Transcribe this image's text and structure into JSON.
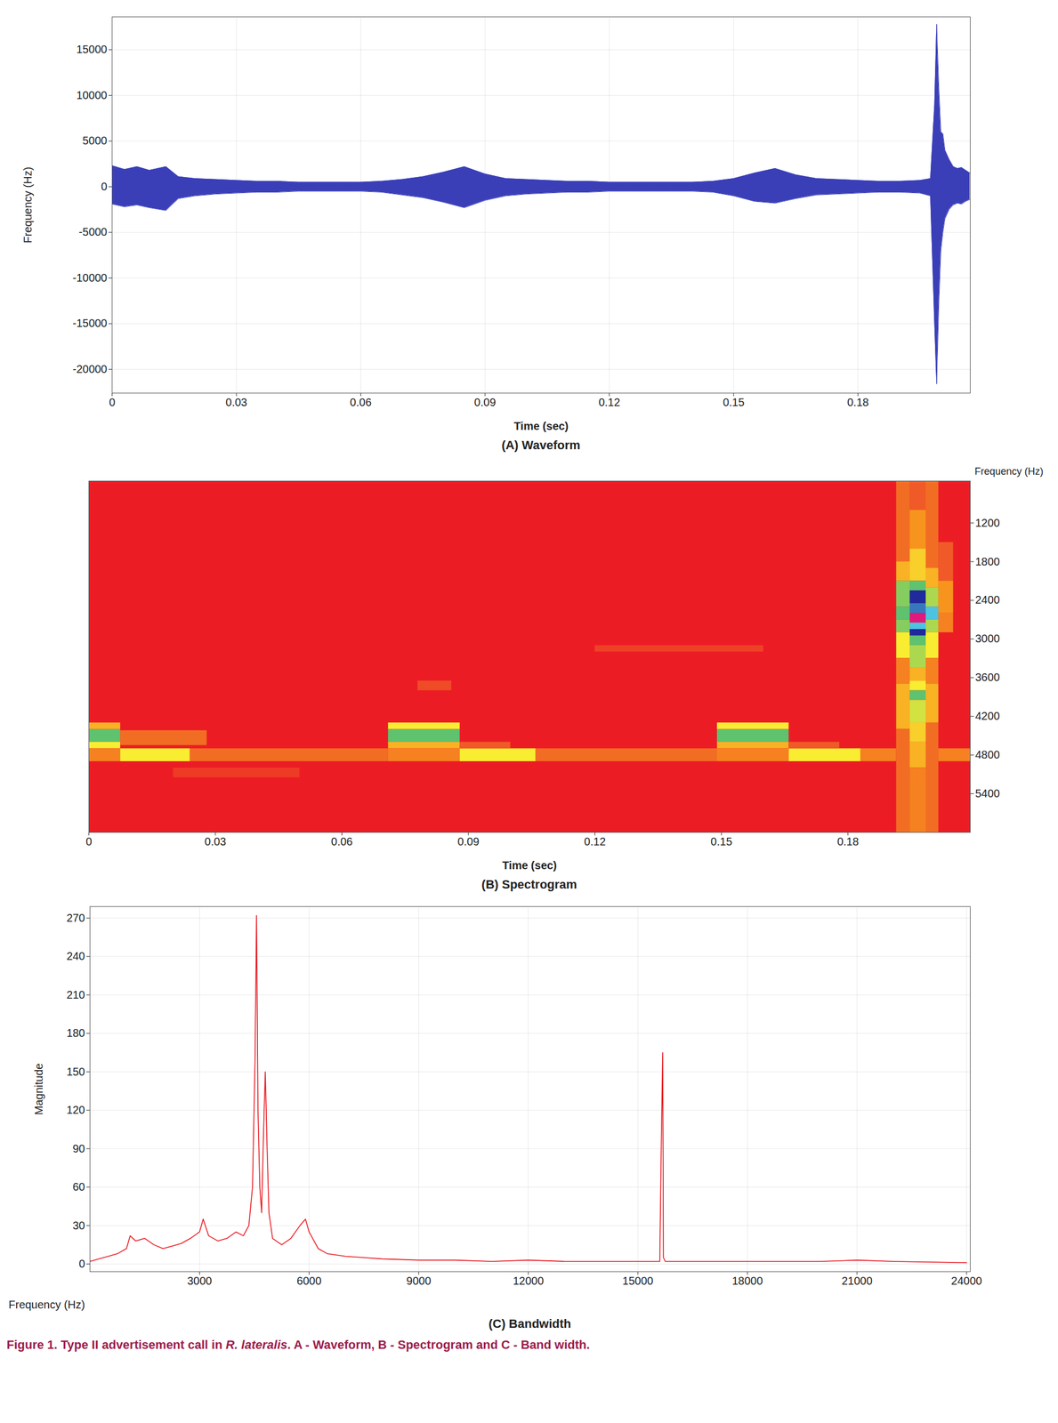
{
  "chart_data": [
    {
      "type": "area",
      "title": "(A) Waveform",
      "x_label": "Time (sec)",
      "y_label": "Frequency (Hz)",
      "color": "#3a3fb8",
      "grid": true,
      "x": [
        0,
        0.003,
        0.006,
        0.009,
        0.013,
        0.016,
        0.02,
        0.025,
        0.03,
        0.035,
        0.04,
        0.045,
        0.05,
        0.055,
        0.06,
        0.065,
        0.07,
        0.075,
        0.08,
        0.085,
        0.09,
        0.095,
        0.1,
        0.105,
        0.11,
        0.115,
        0.12,
        0.125,
        0.13,
        0.135,
        0.14,
        0.145,
        0.15,
        0.155,
        0.16,
        0.165,
        0.17,
        0.175,
        0.18,
        0.185,
        0.19,
        0.195,
        0.1975,
        0.1985,
        0.199,
        0.1995,
        0.2,
        0.2005,
        0.201,
        0.202,
        0.203,
        0.204,
        0.205,
        0.206,
        0.207
      ],
      "y_max": [
        2300,
        1900,
        2200,
        1800,
        2200,
        1100,
        900,
        800,
        700,
        600,
        600,
        500,
        500,
        500,
        500,
        600,
        800,
        1100,
        1600,
        2200,
        1400,
        900,
        800,
        700,
        600,
        600,
        500,
        500,
        500,
        500,
        500,
        600,
        900,
        1500,
        2000,
        1300,
        900,
        800,
        700,
        600,
        600,
        700,
        900,
        9000,
        17800,
        11000,
        6000,
        5800,
        4000,
        3000,
        2200,
        2000,
        2100,
        1800,
        1500
      ],
      "y_min": [
        -1900,
        -2200,
        -2000,
        -2300,
        -2600,
        -1300,
        -1000,
        -800,
        -700,
        -600,
        -600,
        -500,
        -500,
        -500,
        -500,
        -600,
        -900,
        -1200,
        -1700,
        -2300,
        -1500,
        -1000,
        -800,
        -700,
        -600,
        -600,
        -500,
        -500,
        -500,
        -500,
        -500,
        -600,
        -1000,
        -1600,
        -1800,
        -1300,
        -900,
        -800,
        -700,
        -600,
        -600,
        -700,
        -1000,
        -15000,
        -21600,
        -13000,
        -7000,
        -5000,
        -3500,
        -2500,
        -2000,
        -1800,
        -1900,
        -1600,
        -1400
      ],
      "xlim": [
        0,
        0.2071
      ],
      "xticks": [
        0,
        0.03,
        0.06,
        0.09,
        0.12,
        0.15,
        0.18
      ],
      "ylim": [
        -22600,
        18600
      ],
      "yticks": [
        -20000,
        -15000,
        -10000,
        -5000,
        0,
        5000,
        10000,
        15000
      ]
    },
    {
      "type": "heatmap",
      "title": "(B) Spectrogram",
      "x_label": "Time (sec)",
      "y_label": "Frequency (Hz)",
      "xlim": [
        0,
        0.209
      ],
      "xticks": [
        0,
        0.03,
        0.06,
        0.09,
        0.12,
        0.15,
        0.18
      ],
      "ylim": [
        6000,
        550
      ],
      "yticks": [
        1200,
        1800,
        2400,
        3000,
        3600,
        4200,
        4800,
        5400
      ],
      "value_range": [
        0,
        10
      ],
      "cells": [
        [
          0,
          0.0075,
          4400,
          4600,
          7
        ],
        [
          0,
          0.0075,
          4300,
          4400,
          4
        ],
        [
          0,
          0.0075,
          4600,
          4700,
          5
        ],
        [
          0,
          0.0075,
          4700,
          4900,
          3
        ],
        [
          0.0075,
          0.024,
          4700,
          4900,
          5
        ],
        [
          0.0075,
          0.028,
          4420,
          4650,
          2.5
        ],
        [
          0.024,
          0.071,
          4700,
          4900,
          2.5
        ],
        [
          0.071,
          0.088,
          4400,
          4600,
          7
        ],
        [
          0.071,
          0.088,
          4300,
          4400,
          5
        ],
        [
          0.071,
          0.088,
          4600,
          4700,
          4
        ],
        [
          0.071,
          0.088,
          4700,
          4900,
          3
        ],
        [
          0.088,
          0.106,
          4700,
          4900,
          5
        ],
        [
          0.088,
          0.1,
          4600,
          4700,
          2
        ],
        [
          0.106,
          0.149,
          4700,
          4900,
          2.5
        ],
        [
          0.149,
          0.166,
          4400,
          4600,
          7
        ],
        [
          0.149,
          0.166,
          4300,
          4400,
          5
        ],
        [
          0.149,
          0.166,
          4600,
          4700,
          4
        ],
        [
          0.149,
          0.166,
          4700,
          4900,
          3
        ],
        [
          0.166,
          0.183,
          4700,
          4900,
          5
        ],
        [
          0.166,
          0.178,
          4600,
          4700,
          2
        ],
        [
          0.183,
          0.1915,
          4700,
          4900,
          3
        ],
        [
          0.2015,
          0.209,
          4700,
          4900,
          3
        ],
        [
          0.078,
          0.086,
          3650,
          3800,
          1.5
        ],
        [
          0.12,
          0.16,
          3100,
          3200,
          1.2
        ],
        [
          0.02,
          0.05,
          5000,
          5150,
          1
        ],
        [
          0.1947,
          0.1985,
          550,
          1000,
          2
        ],
        [
          0.1947,
          0.1985,
          1000,
          1600,
          3.5
        ],
        [
          0.1947,
          0.1985,
          1600,
          2100,
          4.5
        ],
        [
          0.1947,
          0.1985,
          2100,
          2250,
          7
        ],
        [
          0.1947,
          0.1985,
          2250,
          2450,
          9
        ],
        [
          0.1947,
          0.1985,
          2450,
          2600,
          8.5
        ],
        [
          0.1947,
          0.1985,
          2600,
          2750,
          10
        ],
        [
          0.1947,
          0.1985,
          2750,
          2850,
          8
        ],
        [
          0.1947,
          0.1985,
          2850,
          2950,
          9
        ],
        [
          0.1947,
          0.1985,
          2950,
          3100,
          7
        ],
        [
          0.1947,
          0.1985,
          3100,
          3450,
          6
        ],
        [
          0.1947,
          0.1985,
          3450,
          3650,
          4
        ],
        [
          0.1947,
          0.1985,
          3650,
          3800,
          5
        ],
        [
          0.1947,
          0.1985,
          3800,
          3950,
          7
        ],
        [
          0.1947,
          0.1985,
          3950,
          4300,
          5.5
        ],
        [
          0.1947,
          0.1985,
          4300,
          4600,
          4.5
        ],
        [
          0.1947,
          0.1985,
          4600,
          5000,
          4
        ],
        [
          0.1947,
          0.1985,
          5000,
          6000,
          3
        ],
        [
          0.1915,
          0.1947,
          550,
          1800,
          2.5
        ],
        [
          0.1915,
          0.1947,
          1800,
          2100,
          4
        ],
        [
          0.1915,
          0.1947,
          2100,
          2500,
          6.5
        ],
        [
          0.1915,
          0.1947,
          2500,
          2700,
          7
        ],
        [
          0.1915,
          0.1947,
          2700,
          2900,
          6.5
        ],
        [
          0.1915,
          0.1947,
          2900,
          3300,
          5
        ],
        [
          0.1915,
          0.1947,
          3300,
          3700,
          3
        ],
        [
          0.1915,
          0.1947,
          3700,
          4400,
          4
        ],
        [
          0.1915,
          0.1947,
          4400,
          6000,
          2.5
        ],
        [
          0.1985,
          0.2015,
          550,
          1900,
          2.5
        ],
        [
          0.1985,
          0.2015,
          1900,
          2200,
          4
        ],
        [
          0.1985,
          0.2015,
          2200,
          2500,
          6
        ],
        [
          0.1985,
          0.2015,
          2500,
          2700,
          8
        ],
        [
          0.1985,
          0.2015,
          2700,
          2900,
          6
        ],
        [
          0.1985,
          0.2015,
          2900,
          3300,
          5
        ],
        [
          0.1985,
          0.2015,
          3300,
          3700,
          3
        ],
        [
          0.1985,
          0.2015,
          3700,
          4300,
          4
        ],
        [
          0.1985,
          0.2015,
          4300,
          6000,
          2.5
        ],
        [
          0.2015,
          0.205,
          1500,
          2100,
          2
        ],
        [
          0.2015,
          0.205,
          2100,
          2600,
          3.5
        ],
        [
          0.2015,
          0.205,
          2600,
          2900,
          3
        ]
      ]
    },
    {
      "type": "line",
      "title": "(C) Bandwidth",
      "x_label": "Frequency (Hz)",
      "y_label": "Magnitude",
      "color": "#e8141c",
      "grid": true,
      "x": [
        0,
        250,
        500,
        750,
        1000,
        1100,
        1250,
        1500,
        1750,
        2000,
        2250,
        2500,
        2750,
        3000,
        3100,
        3250,
        3500,
        3750,
        4000,
        4200,
        4350,
        4450,
        4520,
        4560,
        4600,
        4650,
        4700,
        4750,
        4800,
        4850,
        4900,
        5000,
        5250,
        5500,
        5750,
        5900,
        6000,
        6250,
        6500,
        7000,
        7500,
        8000,
        9000,
        10000,
        11000,
        12000,
        13000,
        14000,
        15000,
        15600,
        15650,
        15680,
        15700,
        15750,
        16000,
        18000,
        20000,
        21000,
        22000,
        24000
      ],
      "values": [
        2,
        4,
        6,
        8,
        12,
        22,
        18,
        20,
        15,
        12,
        14,
        16,
        20,
        25,
        35,
        22,
        18,
        20,
        25,
        22,
        30,
        60,
        160,
        272,
        120,
        60,
        40,
        100,
        150,
        90,
        40,
        20,
        15,
        20,
        30,
        35,
        25,
        12,
        8,
        6,
        5,
        4,
        3,
        3,
        2,
        3,
        2,
        2,
        2,
        2,
        110,
        165,
        5,
        2,
        2,
        2,
        2,
        3,
        2,
        1
      ],
      "xlim": [
        0,
        24100
      ],
      "xticks": [
        3000,
        6000,
        9000,
        12000,
        15000,
        18000,
        21000,
        24000
      ],
      "ylim": [
        -6,
        279
      ],
      "yticks": [
        0,
        30,
        60,
        90,
        120,
        150,
        180,
        210,
        240,
        270
      ]
    }
  ],
  "caption": {
    "prefix": "Figure 1. Type II advertisement call in ",
    "species": "R. lateralis",
    "suffix": ". A - Waveform, B - Spectrogram and C - Band width."
  }
}
